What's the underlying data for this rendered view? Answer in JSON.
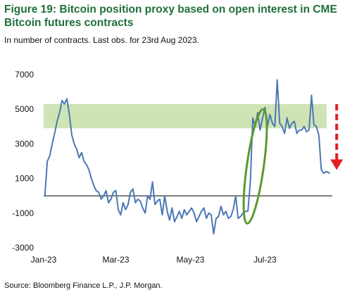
{
  "title": "Figure 19: Bitcoin position proxy based on open interest in CME Bitcoin futures contracts",
  "subtitle": "In number of contracts. Last obs. for 23rd Aug 2023.",
  "source": "Source: Bloomberg Finance L.P., J.P. Morgan.",
  "colors": {
    "line": "#4a78b5",
    "band": "#cfe3b5",
    "ellipse": "#5a9a2e",
    "arrow": "#e02020",
    "title": "#1f6f3b"
  },
  "chart_data": {
    "type": "line",
    "title": "Figure 19: Bitcoin position proxy based on open interest in CME Bitcoin futures contracts",
    "ylim": [
      -3000,
      7000
    ],
    "yticks": [
      7000,
      5000,
      3000,
      1000,
      -1000,
      -3000
    ],
    "ytick_labels": [
      "7000",
      "5000",
      "3000",
      "1000",
      "-1000",
      "-3000"
    ],
    "xlim": [
      "2023-01-01",
      "2023-08-25"
    ],
    "xticks": [
      "2023-01-01",
      "2023-03-01",
      "2023-05-01",
      "2023-07-01"
    ],
    "xtick_labels": [
      "Jan-23",
      "Mar-23",
      "May-23",
      "Jul-23"
    ],
    "band": {
      "from": 3900,
      "to": 5300
    },
    "annotations": [
      "ellipse around late-June jump",
      "red dashed downward arrow near Aug-23"
    ],
    "series": [
      {
        "x": [
          "2023-01-02",
          "2023-01-04",
          "2023-01-06",
          "2023-01-08",
          "2023-01-10",
          "2023-01-12",
          "2023-01-14",
          "2023-01-16",
          "2023-01-18",
          "2023-01-20",
          "2023-01-22",
          "2023-01-24",
          "2023-01-26",
          "2023-01-28",
          "2023-01-30",
          "2023-02-01",
          "2023-02-03",
          "2023-02-05",
          "2023-02-07",
          "2023-02-09",
          "2023-02-11",
          "2023-02-13",
          "2023-02-15",
          "2023-02-17",
          "2023-02-19",
          "2023-02-21",
          "2023-02-23",
          "2023-02-25",
          "2023-02-27",
          "2023-03-01",
          "2023-03-03",
          "2023-03-05",
          "2023-03-07",
          "2023-03-09",
          "2023-03-11",
          "2023-03-13",
          "2023-03-15",
          "2023-03-17",
          "2023-03-19",
          "2023-03-21",
          "2023-03-23",
          "2023-03-25",
          "2023-03-27",
          "2023-03-29",
          "2023-03-31",
          "2023-04-02",
          "2023-04-04",
          "2023-04-06",
          "2023-04-08",
          "2023-04-10",
          "2023-04-12",
          "2023-04-14",
          "2023-04-16",
          "2023-04-18",
          "2023-04-20",
          "2023-04-22",
          "2023-04-24",
          "2023-04-26",
          "2023-04-28",
          "2023-04-30",
          "2023-05-02",
          "2023-05-04",
          "2023-05-06",
          "2023-05-08",
          "2023-05-10",
          "2023-05-12",
          "2023-05-14",
          "2023-05-16",
          "2023-05-18",
          "2023-05-20",
          "2023-05-22",
          "2023-05-24",
          "2023-05-26",
          "2023-05-28",
          "2023-05-30",
          "2023-06-01",
          "2023-06-03",
          "2023-06-05",
          "2023-06-07",
          "2023-06-09",
          "2023-06-11",
          "2023-06-13",
          "2023-06-15",
          "2023-06-17",
          "2023-06-19",
          "2023-06-21",
          "2023-06-23",
          "2023-06-25",
          "2023-06-27",
          "2023-06-29",
          "2023-07-01",
          "2023-07-03",
          "2023-07-05",
          "2023-07-07",
          "2023-07-09",
          "2023-07-11",
          "2023-07-13",
          "2023-07-15",
          "2023-07-17",
          "2023-07-19",
          "2023-07-21",
          "2023-07-23",
          "2023-07-25",
          "2023-07-27",
          "2023-07-29",
          "2023-07-31",
          "2023-08-02",
          "2023-08-04",
          "2023-08-06",
          "2023-08-08",
          "2023-08-10",
          "2023-08-12",
          "2023-08-14",
          "2023-08-16",
          "2023-08-18",
          "2023-08-20",
          "2023-08-23"
        ],
        "values": [
          0,
          2000,
          2300,
          3000,
          3600,
          4300,
          4800,
          5500,
          5300,
          5600,
          4700,
          3500,
          3000,
          2700,
          2200,
          2500,
          2000,
          1800,
          1500,
          1000,
          600,
          300,
          200,
          -200,
          0,
          300,
          -400,
          -200,
          200,
          300,
          -800,
          -1100,
          -400,
          -800,
          -500,
          200,
          400,
          -400,
          -200,
          -300,
          -700,
          -1000,
          0,
          -200,
          800,
          -500,
          -300,
          -200,
          -1100,
          0,
          -900,
          -1400,
          -700,
          -1500,
          -1200,
          -900,
          -1300,
          -800,
          -1100,
          -900,
          -700,
          -1000,
          -1500,
          -1200,
          -900,
          -700,
          -1300,
          -1000,
          -1100,
          -2200,
          -1300,
          -1200,
          -600,
          -1100,
          -900,
          -1300,
          -1200,
          -800,
          0,
          -1300,
          -1200,
          -1000,
          -900,
          -900,
          800,
          4500,
          4000,
          4800,
          3800,
          4500,
          5100,
          4000,
          4700,
          4200,
          4000,
          6700,
          4200,
          4000,
          3600,
          4500,
          3900,
          4200,
          4300,
          3600,
          3800,
          3800,
          4000,
          3700,
          3800,
          5800,
          4100,
          4000,
          3500,
          1500,
          1300,
          1400,
          1300
        ]
      }
    ]
  }
}
